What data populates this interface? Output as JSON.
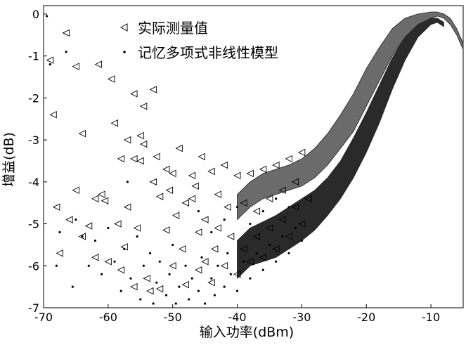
{
  "chart_data": {
    "type": "scatter",
    "xlabel": "输入功率(dBm)",
    "ylabel": "增益(dB)",
    "xlim": [
      -70,
      -5
    ],
    "ylim": [
      -7,
      0.2
    ],
    "xticks": [
      -70,
      -60,
      -50,
      -40,
      -30,
      -20,
      -10
    ],
    "yticks": [
      0,
      -1,
      -2,
      -3,
      -4,
      -5,
      -6,
      -7
    ],
    "grid": false,
    "legend_position": "top-center",
    "series": [
      {
        "name": "实际测量值",
        "marker": "left-triangle",
        "color": "#000000",
        "points": [
          [
            -69,
            -1.1
          ],
          [
            -68.5,
            -2.4
          ],
          [
            -67.5,
            -5.7
          ],
          [
            -66.5,
            -0.45
          ],
          [
            -65,
            -1.25
          ],
          [
            -65,
            -4.2
          ],
          [
            -64,
            -2.85
          ],
          [
            -63,
            -5.05
          ],
          [
            -62,
            -4.4
          ],
          [
            -61.5,
            -1.2
          ],
          [
            -61,
            -4.3
          ],
          [
            -60.5,
            -4.45
          ],
          [
            -59.5,
            -1.55
          ],
          [
            -59,
            -2.6
          ],
          [
            -58.5,
            -5.0
          ],
          [
            -58,
            -3.45
          ],
          [
            -57.5,
            -5.55
          ],
          [
            -57,
            -3.0
          ],
          [
            -56,
            -1.9
          ],
          [
            -56,
            -3.45
          ],
          [
            -55.5,
            -5.1
          ],
          [
            -55,
            -2.9
          ],
          [
            -55,
            -3.5
          ],
          [
            -54.5,
            -2.2
          ],
          [
            -54.5,
            -3.1
          ],
          [
            -53.5,
            -6.6
          ],
          [
            -53,
            -1.8
          ],
          [
            -52.5,
            -3.4
          ],
          [
            -52,
            -4.35
          ],
          [
            -51,
            -5.15
          ],
          [
            -50.5,
            -4.2
          ],
          [
            -50,
            -3.8
          ],
          [
            -49.5,
            -4.8
          ],
          [
            -49,
            -3.2
          ],
          [
            -48.5,
            -5.6
          ],
          [
            -48,
            -4.5
          ],
          [
            -47,
            -3.85
          ],
          [
            -46.5,
            -4.1
          ],
          [
            -46,
            -5.2
          ],
          [
            -45.5,
            -3.4
          ],
          [
            -45,
            -4.9
          ],
          [
            -44,
            -3.75
          ],
          [
            -43.5,
            -5.6
          ],
          [
            -43,
            -4.3
          ],
          [
            -42,
            -3.6
          ],
          [
            -41.5,
            -4.6
          ],
          [
            -41,
            -5.3
          ],
          [
            -40,
            -3.85
          ],
          [
            -39,
            -4.5
          ],
          [
            -38,
            -3.8
          ],
          [
            -37,
            -4.7
          ],
          [
            -36,
            -3.7
          ],
          [
            -35,
            -4.4
          ],
          [
            -34,
            -3.6
          ],
          [
            -33,
            -4.2
          ],
          [
            -32,
            -3.45
          ],
          [
            -31,
            -4.0
          ],
          [
            -30,
            -3.3
          ],
          [
            -58,
            -6.1
          ],
          [
            -56,
            -6.5
          ],
          [
            -54,
            -6.3
          ],
          [
            -52,
            -6.55
          ],
          [
            -50,
            -6.0
          ],
          [
            -48,
            -6.45
          ],
          [
            -46,
            -6.1
          ],
          [
            -44,
            -6.4
          ],
          [
            -42,
            -6.0
          ],
          [
            -40,
            -6.2
          ],
          [
            -38,
            -5.9
          ],
          [
            -36,
            -5.8
          ],
          [
            -34,
            -5.6
          ],
          [
            -32,
            -5.3
          ],
          [
            -30,
            -5.0
          ],
          [
            -60,
            -5.9
          ],
          [
            -62,
            -5.8
          ],
          [
            -64,
            -5.3
          ],
          [
            -66,
            -4.9
          ],
          [
            -68,
            -4.6
          ],
          [
            -57,
            -4.6
          ],
          [
            -53,
            -4.0
          ],
          [
            -51,
            -3.7
          ],
          [
            -47,
            -4.4
          ],
          [
            -45,
            -5.9
          ],
          [
            -43,
            -5.1
          ],
          [
            -39,
            -5.6
          ],
          [
            -37,
            -5.3
          ],
          [
            -35,
            -5.1
          ],
          [
            -33,
            -4.9
          ],
          [
            -31,
            -4.6
          ],
          [
            -29,
            -4.4
          ]
        ]
      },
      {
        "name": "记忆多项式非线性模型",
        "marker": "dot",
        "color": "#000000",
        "points": [
          [
            -69.5,
            -0.05
          ],
          [
            -69,
            -1.2
          ],
          [
            -68,
            -6.0
          ],
          [
            -67.5,
            -5.2
          ],
          [
            -66.5,
            -0.9
          ],
          [
            -65.5,
            -6.5
          ],
          [
            -65,
            -4.9
          ],
          [
            -64,
            -5.3
          ],
          [
            -63,
            -6.0
          ],
          [
            -62,
            -5.4
          ],
          [
            -61,
            -6.2
          ],
          [
            -60,
            -5.1
          ],
          [
            -59,
            -5.9
          ],
          [
            -58,
            -6.6
          ],
          [
            -57.5,
            -5.6
          ],
          [
            -57,
            -4.0
          ],
          [
            -56.5,
            -6.3
          ],
          [
            -55.5,
            -5.3
          ],
          [
            -55,
            -6.8
          ],
          [
            -54.5,
            -6.0
          ],
          [
            -53.5,
            -5.7
          ],
          [
            -53,
            -6.9
          ],
          [
            -52.5,
            -6.4
          ],
          [
            -52,
            -5.9
          ],
          [
            -51,
            -6.7
          ],
          [
            -50.5,
            -6.2
          ],
          [
            -50,
            -5.5
          ],
          [
            -49.5,
            -6.9
          ],
          [
            -49,
            -6.5
          ],
          [
            -48,
            -6.0
          ],
          [
            -47.5,
            -6.8
          ],
          [
            -47,
            -6.3
          ],
          [
            -46,
            -6.6
          ],
          [
            -45.5,
            -5.8
          ],
          [
            -45,
            -6.9
          ],
          [
            -44,
            -6.3
          ],
          [
            -43.5,
            -6.7
          ],
          [
            -43,
            -6.0
          ],
          [
            -42,
            -6.5
          ],
          [
            -41.5,
            -5.7
          ],
          [
            -41,
            -6.2
          ],
          [
            -40,
            -6.6
          ],
          [
            -39,
            -5.9
          ],
          [
            -38,
            -6.3
          ],
          [
            -37,
            -5.7
          ],
          [
            -36,
            -6.1
          ],
          [
            -35,
            -5.5
          ],
          [
            -34,
            -5.9
          ],
          [
            -33,
            -5.3
          ],
          [
            -32,
            -5.7
          ],
          [
            -31,
            -5.1
          ],
          [
            -30,
            -5.4
          ],
          [
            -46,
            -4.7
          ],
          [
            -44,
            -5.2
          ],
          [
            -42,
            -4.9
          ],
          [
            -40,
            -4.6
          ],
          [
            -38,
            -5.0
          ],
          [
            -36,
            -4.7
          ],
          [
            -34,
            -4.4
          ],
          [
            -32,
            -4.6
          ]
        ]
      }
    ],
    "bands": {
      "upper": {
        "x": [
          -40,
          -38,
          -36,
          -34,
          -32,
          -30,
          -28,
          -26,
          -24,
          -22,
          -20,
          -18,
          -16,
          -14,
          -12,
          -10,
          -9,
          -8,
          -7,
          -6,
          -5
        ],
        "y1": [
          -4.9,
          -4.6,
          -4.4,
          -4.3,
          -4.2,
          -4.1,
          -3.9,
          -3.6,
          -3.2,
          -2.8,
          -2.2,
          -1.6,
          -1.0,
          -0.55,
          -0.25,
          -0.1,
          -0.05,
          -0.1,
          -0.25,
          -0.5,
          -0.85
        ],
        "y2": [
          -4.3,
          -4.0,
          -3.8,
          -3.7,
          -3.6,
          -3.45,
          -3.2,
          -2.85,
          -2.4,
          -1.9,
          -1.3,
          -0.8,
          -0.35,
          -0.1,
          0.0,
          0.05,
          0.05,
          0.0,
          -0.1,
          -0.35,
          -0.7
        ]
      },
      "lower": {
        "x": [
          -40,
          -38,
          -36,
          -34,
          -32,
          -30,
          -28,
          -26,
          -24,
          -22,
          -20,
          -18,
          -16,
          -14,
          -12,
          -10,
          -9,
          -8
        ],
        "y1": [
          -6.3,
          -6.0,
          -5.9,
          -5.8,
          -5.6,
          -5.4,
          -5.15,
          -4.8,
          -4.4,
          -3.9,
          -3.3,
          -2.6,
          -1.8,
          -1.1,
          -0.55,
          -0.25,
          -0.2,
          -0.3
        ],
        "y2": [
          -5.4,
          -5.1,
          -4.95,
          -4.8,
          -4.6,
          -4.4,
          -4.2,
          -3.9,
          -3.5,
          -2.95,
          -2.35,
          -1.7,
          -1.05,
          -0.55,
          -0.25,
          -0.1,
          -0.1,
          -0.2
        ]
      }
    }
  }
}
